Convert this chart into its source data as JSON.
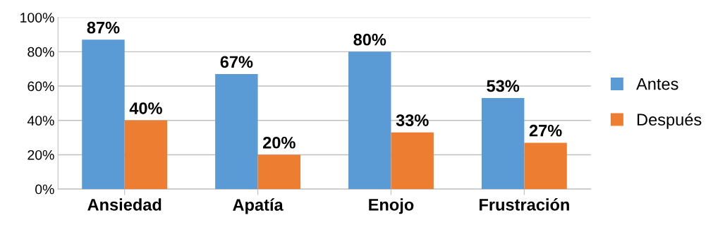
{
  "chart_data": {
    "type": "bar",
    "categories": [
      "Ansiedad",
      "Apatía",
      "Enojo",
      "Frustración"
    ],
    "series": [
      {
        "name": "Antes",
        "color": "#5b9bd5",
        "values": [
          87,
          67,
          80,
          53
        ],
        "value_labels": [
          "87%",
          "67%",
          "80%",
          "53%"
        ]
      },
      {
        "name": "Después",
        "color": "#ed7d31",
        "values": [
          40,
          20,
          33,
          27
        ],
        "value_labels": [
          "40%",
          "20%",
          "33%",
          "27%"
        ]
      }
    ],
    "ylim": [
      0,
      100
    ],
    "yticks": [
      {
        "value": 0,
        "label": "0%"
      },
      {
        "value": 20,
        "label": "20%"
      },
      {
        "value": 40,
        "label": "40%"
      },
      {
        "value": 60,
        "label": "60%"
      },
      {
        "value": 80,
        "label": "80%"
      },
      {
        "value": 100,
        "label": "100%"
      }
    ],
    "grid": "y",
    "legend": "right"
  }
}
